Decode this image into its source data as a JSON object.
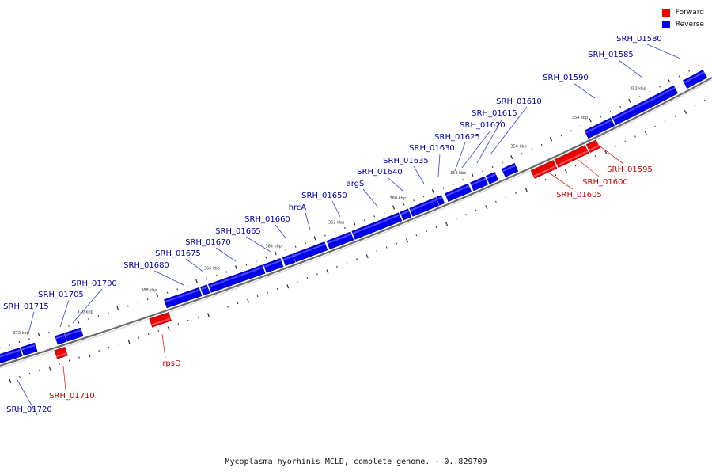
{
  "legend": {
    "forward_label": "Forward",
    "reverse_label": "Reverse",
    "forward_color": "#ee0000",
    "reverse_color": "#0000ee"
  },
  "caption": "Mycoplasma hyorhinis MCLD, complete genome. - 0..829709",
  "label_colors": {
    "forward": "#cc0000",
    "reverse": "#0000aa"
  },
  "kbp_ticks": [
    "352 kbp",
    "354 kbp",
    "356 kbp",
    "358 kbp",
    "360 kbp",
    "362 kbp",
    "364 kbp",
    "366 kbp",
    "368 kbp",
    "370 kbp",
    "372 kbp"
  ],
  "genes": [
    {
      "label": "SRH_01580",
      "strand": "reverse"
    },
    {
      "label": "SRH_01585",
      "strand": "reverse"
    },
    {
      "label": "SRH_01590",
      "strand": "reverse"
    },
    {
      "label": "SRH_01595",
      "strand": "forward"
    },
    {
      "label": "SRH_01600",
      "strand": "forward"
    },
    {
      "label": "SRH_01605",
      "strand": "forward"
    },
    {
      "label": "SRH_01610",
      "strand": "reverse"
    },
    {
      "label": "SRH_01615",
      "strand": "reverse"
    },
    {
      "label": "SRH_01620",
      "strand": "reverse"
    },
    {
      "label": "SRH_01625",
      "strand": "reverse"
    },
    {
      "label": "SRH_01630",
      "strand": "reverse"
    },
    {
      "label": "SRH_01635",
      "strand": "reverse"
    },
    {
      "label": "SRH_01640",
      "strand": "reverse"
    },
    {
      "label": "argS",
      "strand": "reverse"
    },
    {
      "label": "SRH_01650",
      "strand": "reverse"
    },
    {
      "label": "hrcA",
      "strand": "reverse"
    },
    {
      "label": "SRH_01660",
      "strand": "reverse"
    },
    {
      "label": "SRH_01665",
      "strand": "reverse"
    },
    {
      "label": "SRH_01670",
      "strand": "reverse"
    },
    {
      "label": "SRH_01675",
      "strand": "reverse"
    },
    {
      "label": "SRH_01680",
      "strand": "reverse"
    },
    {
      "label": "rpsD",
      "strand": "forward"
    },
    {
      "label": "SRH_01700",
      "strand": "reverse"
    },
    {
      "label": "SRH_01705",
      "strand": "reverse"
    },
    {
      "label": "SRH_01710",
      "strand": "forward"
    },
    {
      "label": "SRH_01715",
      "strand": "reverse"
    },
    {
      "label": "SRH_01720",
      "strand": "reverse"
    }
  ]
}
